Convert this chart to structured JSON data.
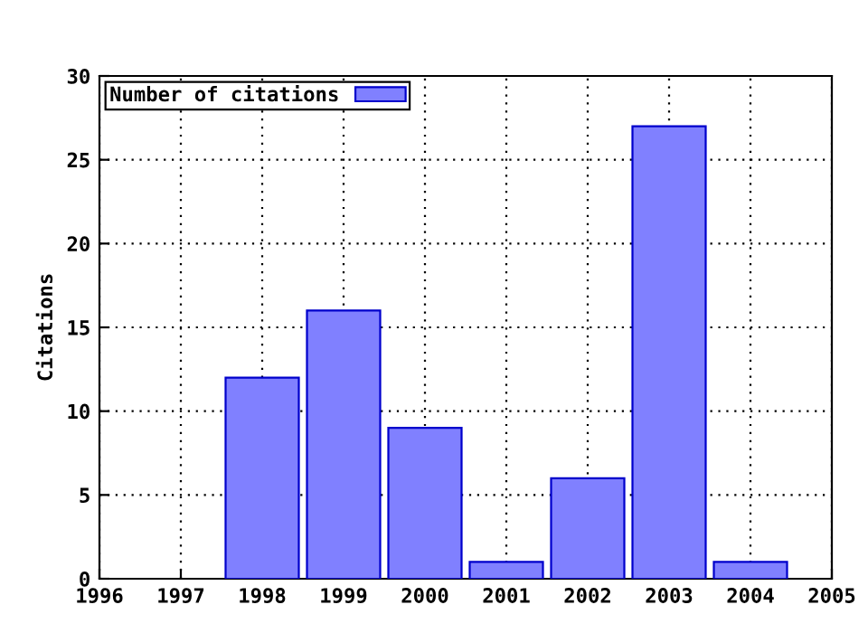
{
  "chart_data": {
    "type": "bar",
    "ylabel": "Citations",
    "x": [
      1998,
      1999,
      2000,
      2001,
      2002,
      2003,
      2004
    ],
    "series": [
      {
        "name": "Number of citations",
        "color": "#8080ff",
        "values": [
          12,
          16,
          9,
          1,
          6,
          27,
          1
        ]
      }
    ],
    "xlim": [
      1996,
      2005
    ],
    "xticks": [
      1996,
      1997,
      1998,
      1999,
      2000,
      2001,
      2002,
      2003,
      2004,
      2005
    ],
    "ylim": [
      0,
      30
    ],
    "yticks": [
      0,
      5,
      10,
      15,
      20,
      25,
      30
    ],
    "grid": true,
    "legend": "top left"
  }
}
